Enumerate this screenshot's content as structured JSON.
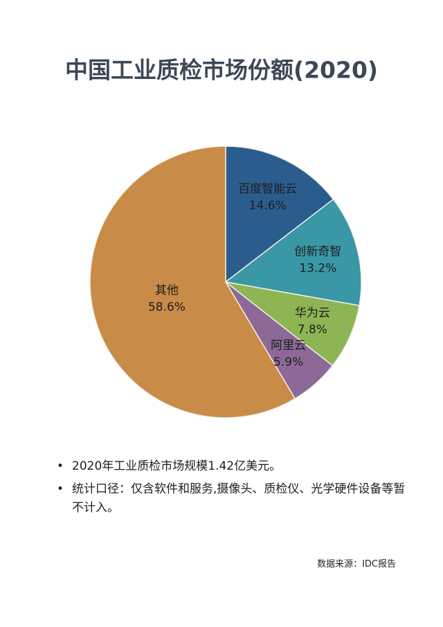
{
  "chart_data": {
    "type": "pie",
    "title": "中国工业质检市场份额(2020)",
    "categories": [
      "百度智能云",
      "创新奇智",
      "华为云",
      "阿里云",
      "其他"
    ],
    "values": [
      14.6,
      13.2,
      7.8,
      5.9,
      58.6
    ],
    "value_labels": [
      "14.6%",
      "13.2%",
      "7.8%",
      "5.9%",
      "58.6%"
    ],
    "colors": [
      "#2a5d8e",
      "#3a97a6",
      "#8db553",
      "#8c6996",
      "#c98b48"
    ],
    "notes": [
      "2020年工业质检市场规模1.42亿美元。",
      "统计口径：仅含软件和服务,摄像头、质检仪、光学硬件设备等暂不计入。"
    ],
    "source": "数据来源：IDC报告"
  }
}
